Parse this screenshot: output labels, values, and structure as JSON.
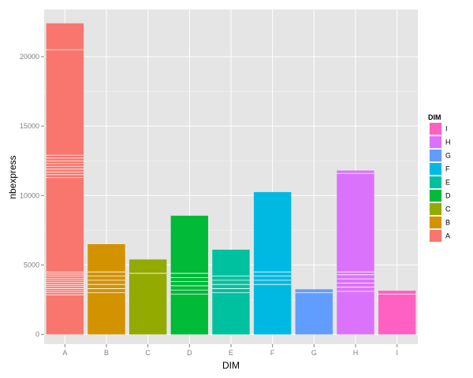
{
  "chart_data": {
    "type": "bar",
    "title": "",
    "xlabel": "DIM",
    "ylabel": "nbexpress",
    "categories": [
      "A",
      "B",
      "C",
      "D",
      "E",
      "F",
      "G",
      "H",
      "I"
    ],
    "values": [
      22400,
      6500,
      5400,
      8550,
      6100,
      10250,
      3250,
      11800,
      3150
    ],
    "ylim": [
      -700,
      23400
    ],
    "yticks": [
      0,
      5000,
      10000,
      15000,
      20000
    ],
    "ytick_labels": [
      "0",
      "5000",
      "10000",
      "15000",
      "20000"
    ],
    "grid": true,
    "legend": {
      "title": "DIM",
      "position": "right",
      "entries": [
        "I",
        "H",
        "G",
        "F",
        "E",
        "D",
        "C",
        "B",
        "A"
      ]
    },
    "colors": {
      "A": "#F8766D",
      "B": "#D39200",
      "C": "#93AA00",
      "D": "#00BA38",
      "E": "#00C19F",
      "F": "#00B9E3",
      "G": "#619CFF",
      "H": "#DB72FB",
      "I": "#FF61C3"
    },
    "segment_lines": {
      "A": [
        2850,
        3000,
        3150,
        3300,
        3450,
        3600,
        3750,
        3900,
        4050,
        4200,
        4350,
        4500,
        11300,
        11500,
        11700,
        11900,
        12100,
        12300,
        12500,
        12700,
        12900,
        20500
      ],
      "B": [
        3000,
        3300,
        3600,
        3900,
        4200,
        4500
      ],
      "C": [
        4400
      ],
      "D": [
        2900,
        3200,
        3500,
        3800,
        4100,
        4400
      ],
      "E": [
        3000,
        3300,
        3600,
        3900,
        4200
      ],
      "F": [
        3600,
        3900,
        4200,
        4500
      ],
      "G": [
        3000
      ],
      "H": [
        3100,
        3400,
        3700,
        4000,
        4300,
        4500,
        11600
      ],
      "I": [
        2900
      ]
    },
    "panel_background": "#E5E5E5",
    "grid_color": "#FFFFFF"
  }
}
